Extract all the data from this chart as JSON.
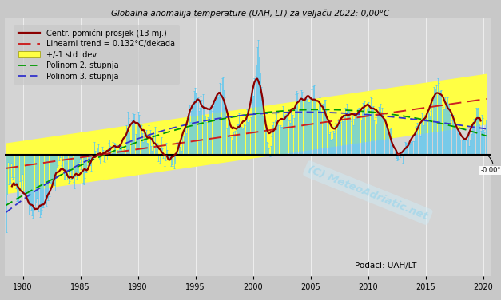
{
  "title": "Globalna anomalija temperature (UAH, LT) za veljaču 2022: 0,00°C",
  "legend_labels": [
    "Centr. pomični prosjek (13 mj.)",
    "Linearni trend = 0.132°C/dekada",
    "+/-1 std. dev.",
    "Polinom 2. stupnja",
    "Polinom 3. stupnja"
  ],
  "annotation_text": "-0.00°C",
  "watermark": "(C) MeteoAdriatic.net",
  "source": "Podaci: UAH/LT",
  "bg_color": "#c8c8c8",
  "plot_bg_color": "#d4d4d4",
  "bar_color": "#5bc8f0",
  "moving_avg_color": "#8b0000",
  "trend_color": "#cc2222",
  "poly2_color": "#009900",
  "poly3_color": "#3333cc",
  "std_fill_color": "#ffff44",
  "zero_line_color": "#000000",
  "grid_color": "#bcbcbc",
  "ylim": [
    -0.82,
    0.92
  ]
}
